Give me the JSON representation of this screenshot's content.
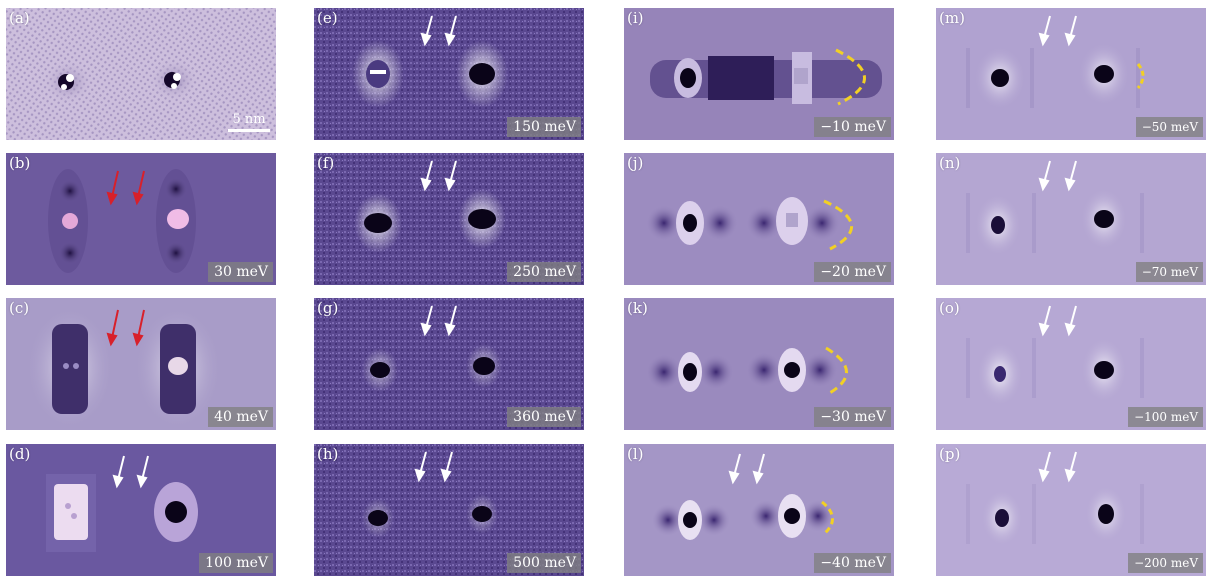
{
  "panels": [
    {
      "label": "(a)",
      "energy": "",
      "scale_bar": "5 nm",
      "arrows": "",
      "dashed_arc": false
    },
    {
      "label": "(b)",
      "energy": "30 meV",
      "scale_bar": "",
      "arrows": "red",
      "dashed_arc": false
    },
    {
      "label": "(c)",
      "energy": "40 meV",
      "scale_bar": "",
      "arrows": "red",
      "dashed_arc": false
    },
    {
      "label": "(d)",
      "energy": "100 meV",
      "scale_bar": "",
      "arrows": "white",
      "dashed_arc": false
    },
    {
      "label": "(e)",
      "energy": "150 meV",
      "scale_bar": "",
      "arrows": "white",
      "dashed_arc": false
    },
    {
      "label": "(f)",
      "energy": "250 meV",
      "scale_bar": "",
      "arrows": "white",
      "dashed_arc": false
    },
    {
      "label": "(g)",
      "energy": "360 meV",
      "scale_bar": "",
      "arrows": "white",
      "dashed_arc": false
    },
    {
      "label": "(h)",
      "energy": "500 meV",
      "scale_bar": "",
      "arrows": "white",
      "dashed_arc": false
    },
    {
      "label": "(i)",
      "energy": "−10 meV",
      "scale_bar": "",
      "arrows": "",
      "dashed_arc": true
    },
    {
      "label": "(j)",
      "energy": "−20 meV",
      "scale_bar": "",
      "arrows": "",
      "dashed_arc": true
    },
    {
      "label": "(k)",
      "energy": "−30 meV",
      "scale_bar": "",
      "arrows": "",
      "dashed_arc": true
    },
    {
      "label": "(l)",
      "energy": "−40 meV",
      "scale_bar": "",
      "arrows": "white",
      "dashed_arc": true
    },
    {
      "label": "(m)",
      "energy": "−50 meV",
      "scale_bar": "",
      "arrows": "white",
      "dashed_arc": true
    },
    {
      "label": "(n)",
      "energy": "−70 meV",
      "scale_bar": "",
      "arrows": "white",
      "dashed_arc": false
    },
    {
      "label": "(o)",
      "energy": "−100 meV",
      "scale_bar": "",
      "arrows": "white",
      "dashed_arc": false
    },
    {
      "label": "(p)",
      "energy": "−200 meV",
      "scale_bar": "",
      "arrows": "white",
      "dashed_arc": false
    }
  ],
  "colors": {
    "arrow_red": "#d8202a",
    "arrow_white": "#ffffff",
    "arc_yellow": "#f2d024",
    "defect_dark": "#0a0418",
    "highlight": "#f6e8f4"
  }
}
